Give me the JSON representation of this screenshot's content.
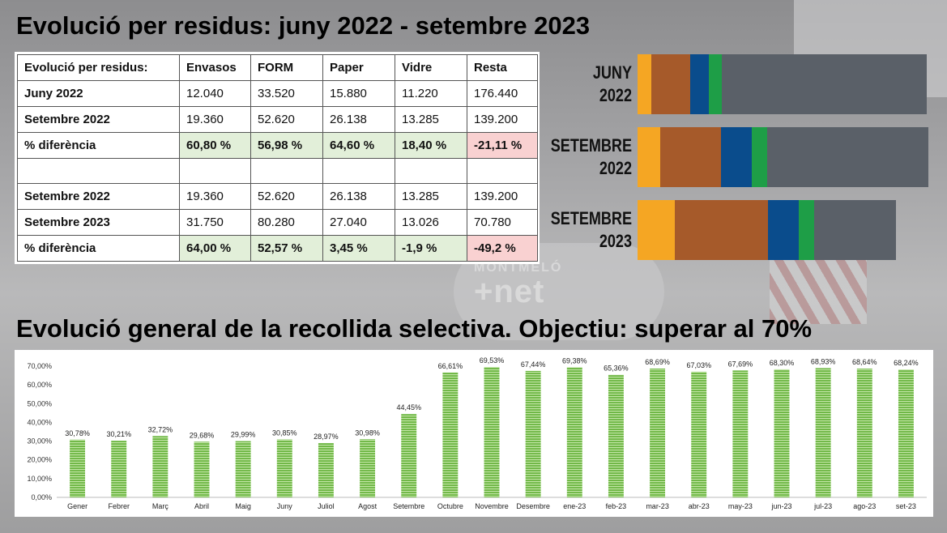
{
  "title_top": "Evolució per residus: juny 2022 - setembre 2023",
  "title_bottom": "Evolució general de la recollida selectiva. Objectiu: superar al 70%",
  "background_logo": {
    "line1": "MONTMELÓ",
    "line2": "+net"
  },
  "table": {
    "headers": [
      "Evolució per residus:",
      "Envasos",
      "FORM",
      "Paper",
      "Vidre",
      "Resta"
    ],
    "rows": [
      {
        "label": "Juny 2022",
        "cells": [
          "12.040",
          "33.520",
          "15.880",
          "11.220",
          "176.440"
        ],
        "styles": [
          "",
          "",
          "",
          "",
          ""
        ]
      },
      {
        "label": "Setembre 2022",
        "cells": [
          "19.360",
          "52.620",
          "26.138",
          "13.285",
          "139.200"
        ],
        "styles": [
          "",
          "",
          "",
          "",
          ""
        ]
      },
      {
        "label": "% diferència",
        "cells": [
          "60,80 %",
          "56,98 %",
          "64,60 %",
          "18,40 %",
          "-21,11 %"
        ],
        "styles": [
          "pos",
          "pos",
          "pos",
          "pos",
          "neg"
        ]
      },
      {
        "label": "",
        "cells": [
          "",
          "",
          "",
          "",
          ""
        ],
        "styles": [
          "",
          "",
          "",
          "",
          ""
        ]
      },
      {
        "label": "Setembre 2022",
        "cells": [
          "19.360",
          "52.620",
          "26.138",
          "13.285",
          "139.200"
        ],
        "styles": [
          "",
          "",
          "",
          "",
          ""
        ]
      },
      {
        "label": "Setembre 2023",
        "cells": [
          "31.750",
          "80.280",
          "27.040",
          "13.026",
          "70.780"
        ],
        "styles": [
          "",
          "",
          "",
          "",
          ""
        ]
      },
      {
        "label": "% diferència",
        "cells": [
          "64,00 %",
          "52,57 %",
          "3,45 %",
          "-1,9 %",
          "-49,2 %"
        ],
        "styles": [
          "pos",
          "pos",
          "pos",
          "pos",
          "neg"
        ]
      }
    ]
  },
  "chart_data": [
    {
      "type": "bar",
      "orientation": "horizontal-stacked",
      "categories": [
        "Envasos",
        "FORM",
        "Paper",
        "Vidre",
        "Resta"
      ],
      "colors": [
        "#f5a623",
        "#a65a2a",
        "#0a4c8c",
        "#1e9e47",
        "#5a6068"
      ],
      "rows": [
        {
          "label_lines": [
            "JUNY",
            "2022"
          ],
          "values": [
            12040,
            33520,
            15880,
            11220,
            176440
          ]
        },
        {
          "label_lines": [
            "SETEMBRE",
            "2022"
          ],
          "values": [
            19360,
            52620,
            26138,
            13285,
            139200
          ]
        },
        {
          "label_lines": [
            "SETEMBRE",
            "2023"
          ],
          "values": [
            31750,
            80280,
            27040,
            13026,
            70780
          ]
        }
      ]
    },
    {
      "type": "bar",
      "title": "",
      "xlabel": "",
      "ylabel": "",
      "ylim": [
        0,
        70
      ],
      "yticks": [
        0,
        10,
        20,
        30,
        40,
        50,
        60,
        70
      ],
      "ytick_labels": [
        "0,00%",
        "10,00%",
        "20,00%",
        "30,00%",
        "40,00%",
        "50,00%",
        "60,00%",
        "70,00%"
      ],
      "grid": false,
      "bar_color": "#6ab540",
      "categories": [
        "Gener",
        "Febrer",
        "Març",
        "Abril",
        "Maig",
        "Juny",
        "Juliol",
        "Agost",
        "Setembre",
        "Octubre",
        "Novembre",
        "Desembre",
        "ene-23",
        "feb-23",
        "mar-23",
        "abr-23",
        "may-23",
        "jun-23",
        "jul-23",
        "ago-23",
        "set-23"
      ],
      "values": [
        30.78,
        30.21,
        32.72,
        29.68,
        29.99,
        30.85,
        28.97,
        30.98,
        44.45,
        66.61,
        69.53,
        67.44,
        69.38,
        65.36,
        68.69,
        67.03,
        67.69,
        68.3,
        68.93,
        68.64,
        68.24
      ],
      "data_labels": [
        "30,78%",
        "30,21%",
        "32,72%",
        "29,68%",
        "29,99%",
        "30,85%",
        "28,97%",
        "30,98%",
        "44,45%",
        "66,61%",
        "69,53%",
        "67,44%",
        "69,38%",
        "65,36%",
        "68,69%",
        "67,03%",
        "67,69%",
        "68,30%",
        "68,93%",
        "68,64%",
        "68,24%"
      ]
    }
  ]
}
